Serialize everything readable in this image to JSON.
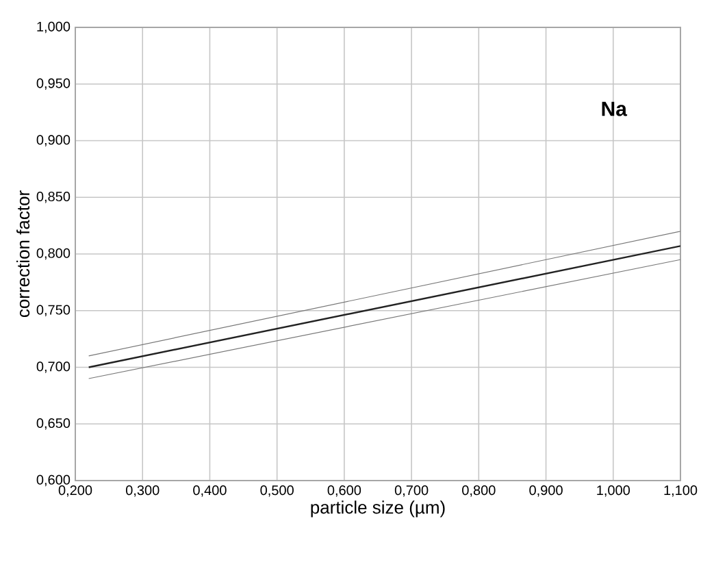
{
  "chart_data": {
    "type": "line",
    "xlabel": "particle size (µm)",
    "ylabel": "correction factor",
    "annotations": [
      "Na"
    ],
    "x": [
      0.22,
      1.1
    ],
    "series": [
      {
        "color": "#777777",
        "values": [
          0.71,
          0.82
        ]
      },
      {
        "color": "#222222",
        "values": [
          0.7,
          0.807
        ]
      },
      {
        "color": "#777777",
        "values": [
          0.69,
          0.795
        ]
      }
    ],
    "xlim": [
      0.2,
      1.1
    ],
    "ylim": [
      0.6,
      1.0
    ],
    "xticks": [
      {
        "value": 0.2,
        "label": "0,200"
      },
      {
        "value": 0.3,
        "label": "0,300"
      },
      {
        "value": 0.4,
        "label": "0,400"
      },
      {
        "value": 0.5,
        "label": "0,500"
      },
      {
        "value": 0.6,
        "label": "0,600"
      },
      {
        "value": 0.7,
        "label": "0,700"
      },
      {
        "value": 0.8,
        "label": "0,800"
      },
      {
        "value": 0.9,
        "label": "0,900"
      },
      {
        "value": 1.0,
        "label": "1,000"
      },
      {
        "value": 1.1,
        "label": "1,100"
      }
    ],
    "yticks": [
      {
        "value": 0.6,
        "label": "0,600"
      },
      {
        "value": 0.65,
        "label": "0,650"
      },
      {
        "value": 0.7,
        "label": "0,700"
      },
      {
        "value": 0.75,
        "label": "0,750"
      },
      {
        "value": 0.8,
        "label": "0,800"
      },
      {
        "value": 0.85,
        "label": "0,850"
      },
      {
        "value": 0.9,
        "label": "0,900"
      },
      {
        "value": 0.95,
        "label": "0,950"
      },
      {
        "value": 1.0,
        "label": "1,000"
      }
    ],
    "grid": true,
    "marker": "none",
    "line_style": "solid"
  }
}
